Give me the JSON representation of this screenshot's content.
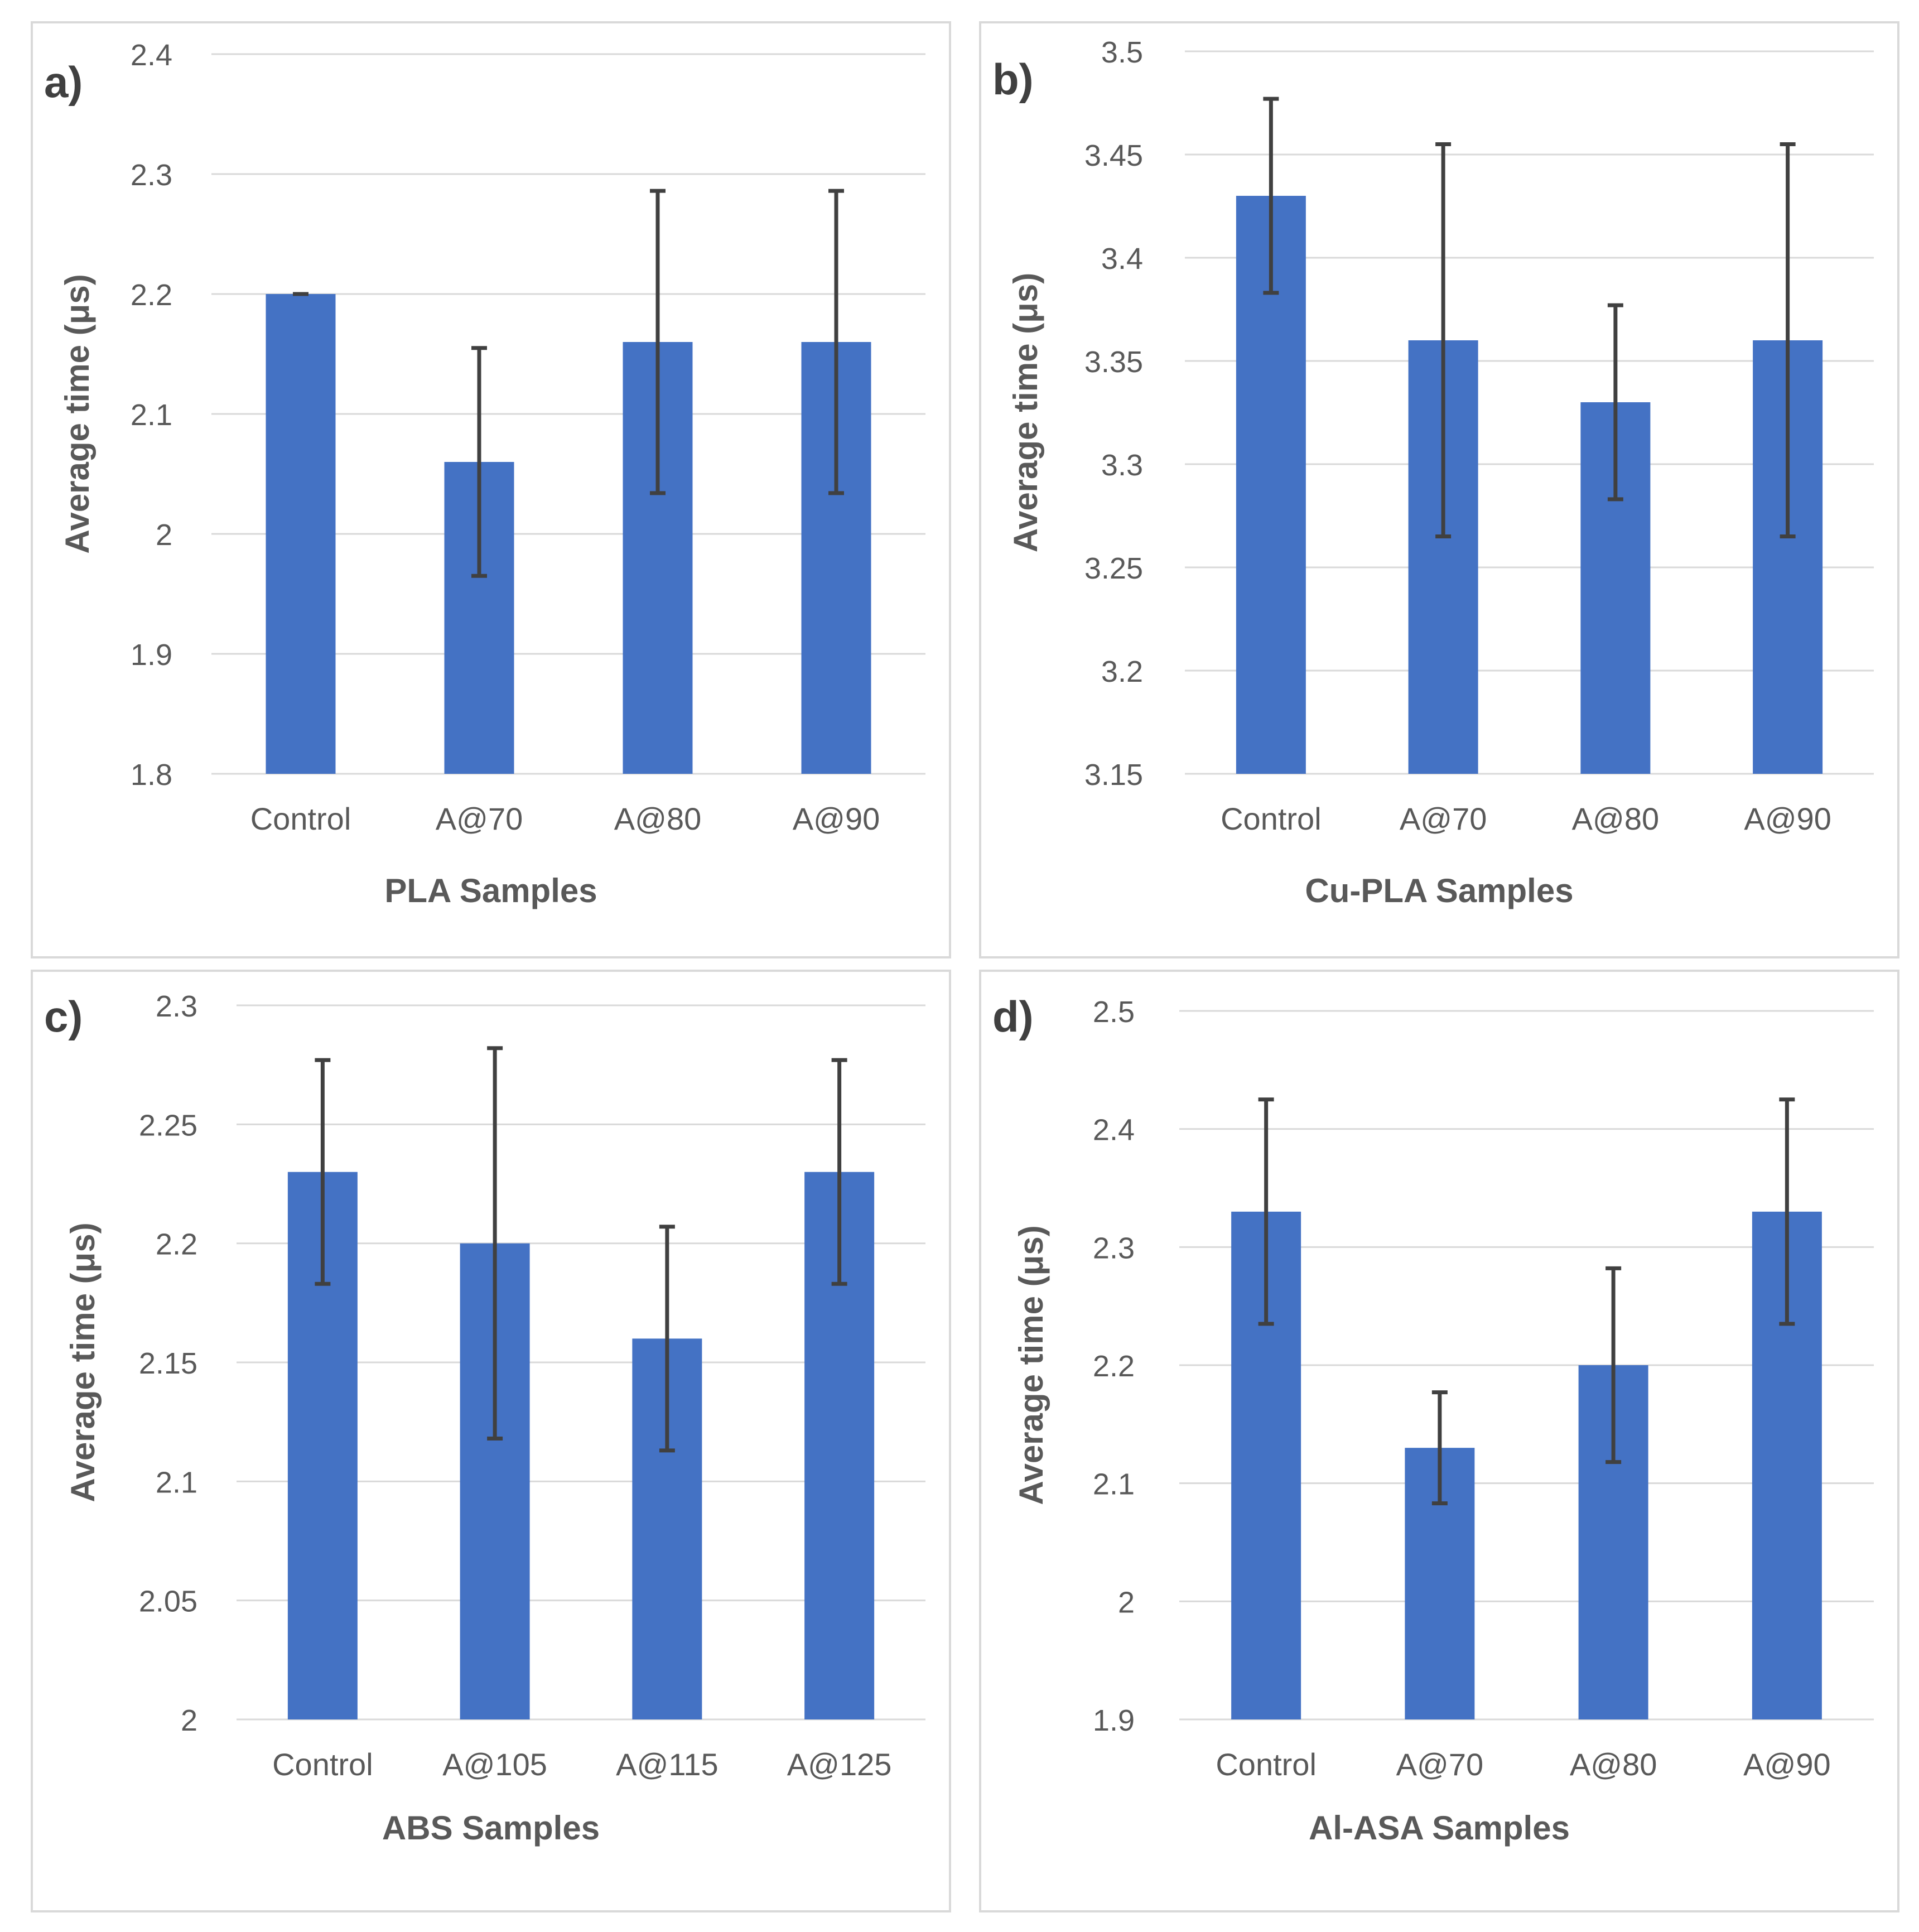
{
  "colors": {
    "bar": "#4472C4",
    "grid": "#d9d9d9",
    "error": "#404040",
    "tick": "#595959",
    "border": "#d9d9d9"
  },
  "chart_data": [
    {
      "panel": "a)",
      "type": "bar",
      "xlabel": "PLA Samples",
      "ylabel": "Average time (μs)",
      "categories": [
        "Control",
        "A@70",
        "A@80",
        "A@90"
      ],
      "values": [
        2.2,
        2.06,
        2.16,
        2.16
      ],
      "errors": [
        0,
        0.095,
        0.126,
        0.126
      ],
      "ylim": [
        1.8,
        2.4
      ],
      "yticks": [
        "1.8",
        "1.9",
        "2",
        "2.1",
        "2.2",
        "2.3",
        "2.4"
      ],
      "grid": true
    },
    {
      "panel": "b)",
      "type": "bar",
      "xlabel": "Cu-PLA Samples",
      "ylabel": "Average time (μs)",
      "categories": [
        "Control",
        "A@70",
        "A@80",
        "A@90"
      ],
      "values": [
        3.43,
        3.36,
        3.33,
        3.36
      ],
      "errors": [
        0.047,
        0.095,
        0.047,
        0.095
      ],
      "ylim": [
        3.15,
        3.5
      ],
      "yticks": [
        "3.15",
        "3.2",
        "3.25",
        "3.3",
        "3.35",
        "3.4",
        "3.45",
        "3.5"
      ],
      "grid": true
    },
    {
      "panel": "c)",
      "type": "bar",
      "xlabel": "ABS Samples",
      "ylabel": "Average time (μs)",
      "categories": [
        "Control",
        "A@105",
        "A@115",
        "A@125"
      ],
      "values": [
        2.23,
        2.2,
        2.16,
        2.23
      ],
      "errors": [
        0.047,
        0.082,
        0.047,
        0.047
      ],
      "ylim": [
        2.0,
        2.3
      ],
      "yticks": [
        "2",
        "2.05",
        "2.1",
        "2.15",
        "2.2",
        "2.25",
        "2.3"
      ],
      "grid": true
    },
    {
      "panel": "d)",
      "type": "bar",
      "xlabel": "Al-ASA Samples",
      "ylabel": "Average time (μs)",
      "categories": [
        "Control",
        "A@70",
        "A@80",
        "A@90"
      ],
      "values": [
        2.33,
        2.13,
        2.2,
        2.33
      ],
      "errors": [
        0.095,
        0.047,
        0.082,
        0.095
      ],
      "ylim": [
        1.9,
        2.5
      ],
      "yticks": [
        "1.9",
        "2",
        "2.1",
        "2.2",
        "2.3",
        "2.4",
        "2.5"
      ],
      "grid": true
    }
  ]
}
